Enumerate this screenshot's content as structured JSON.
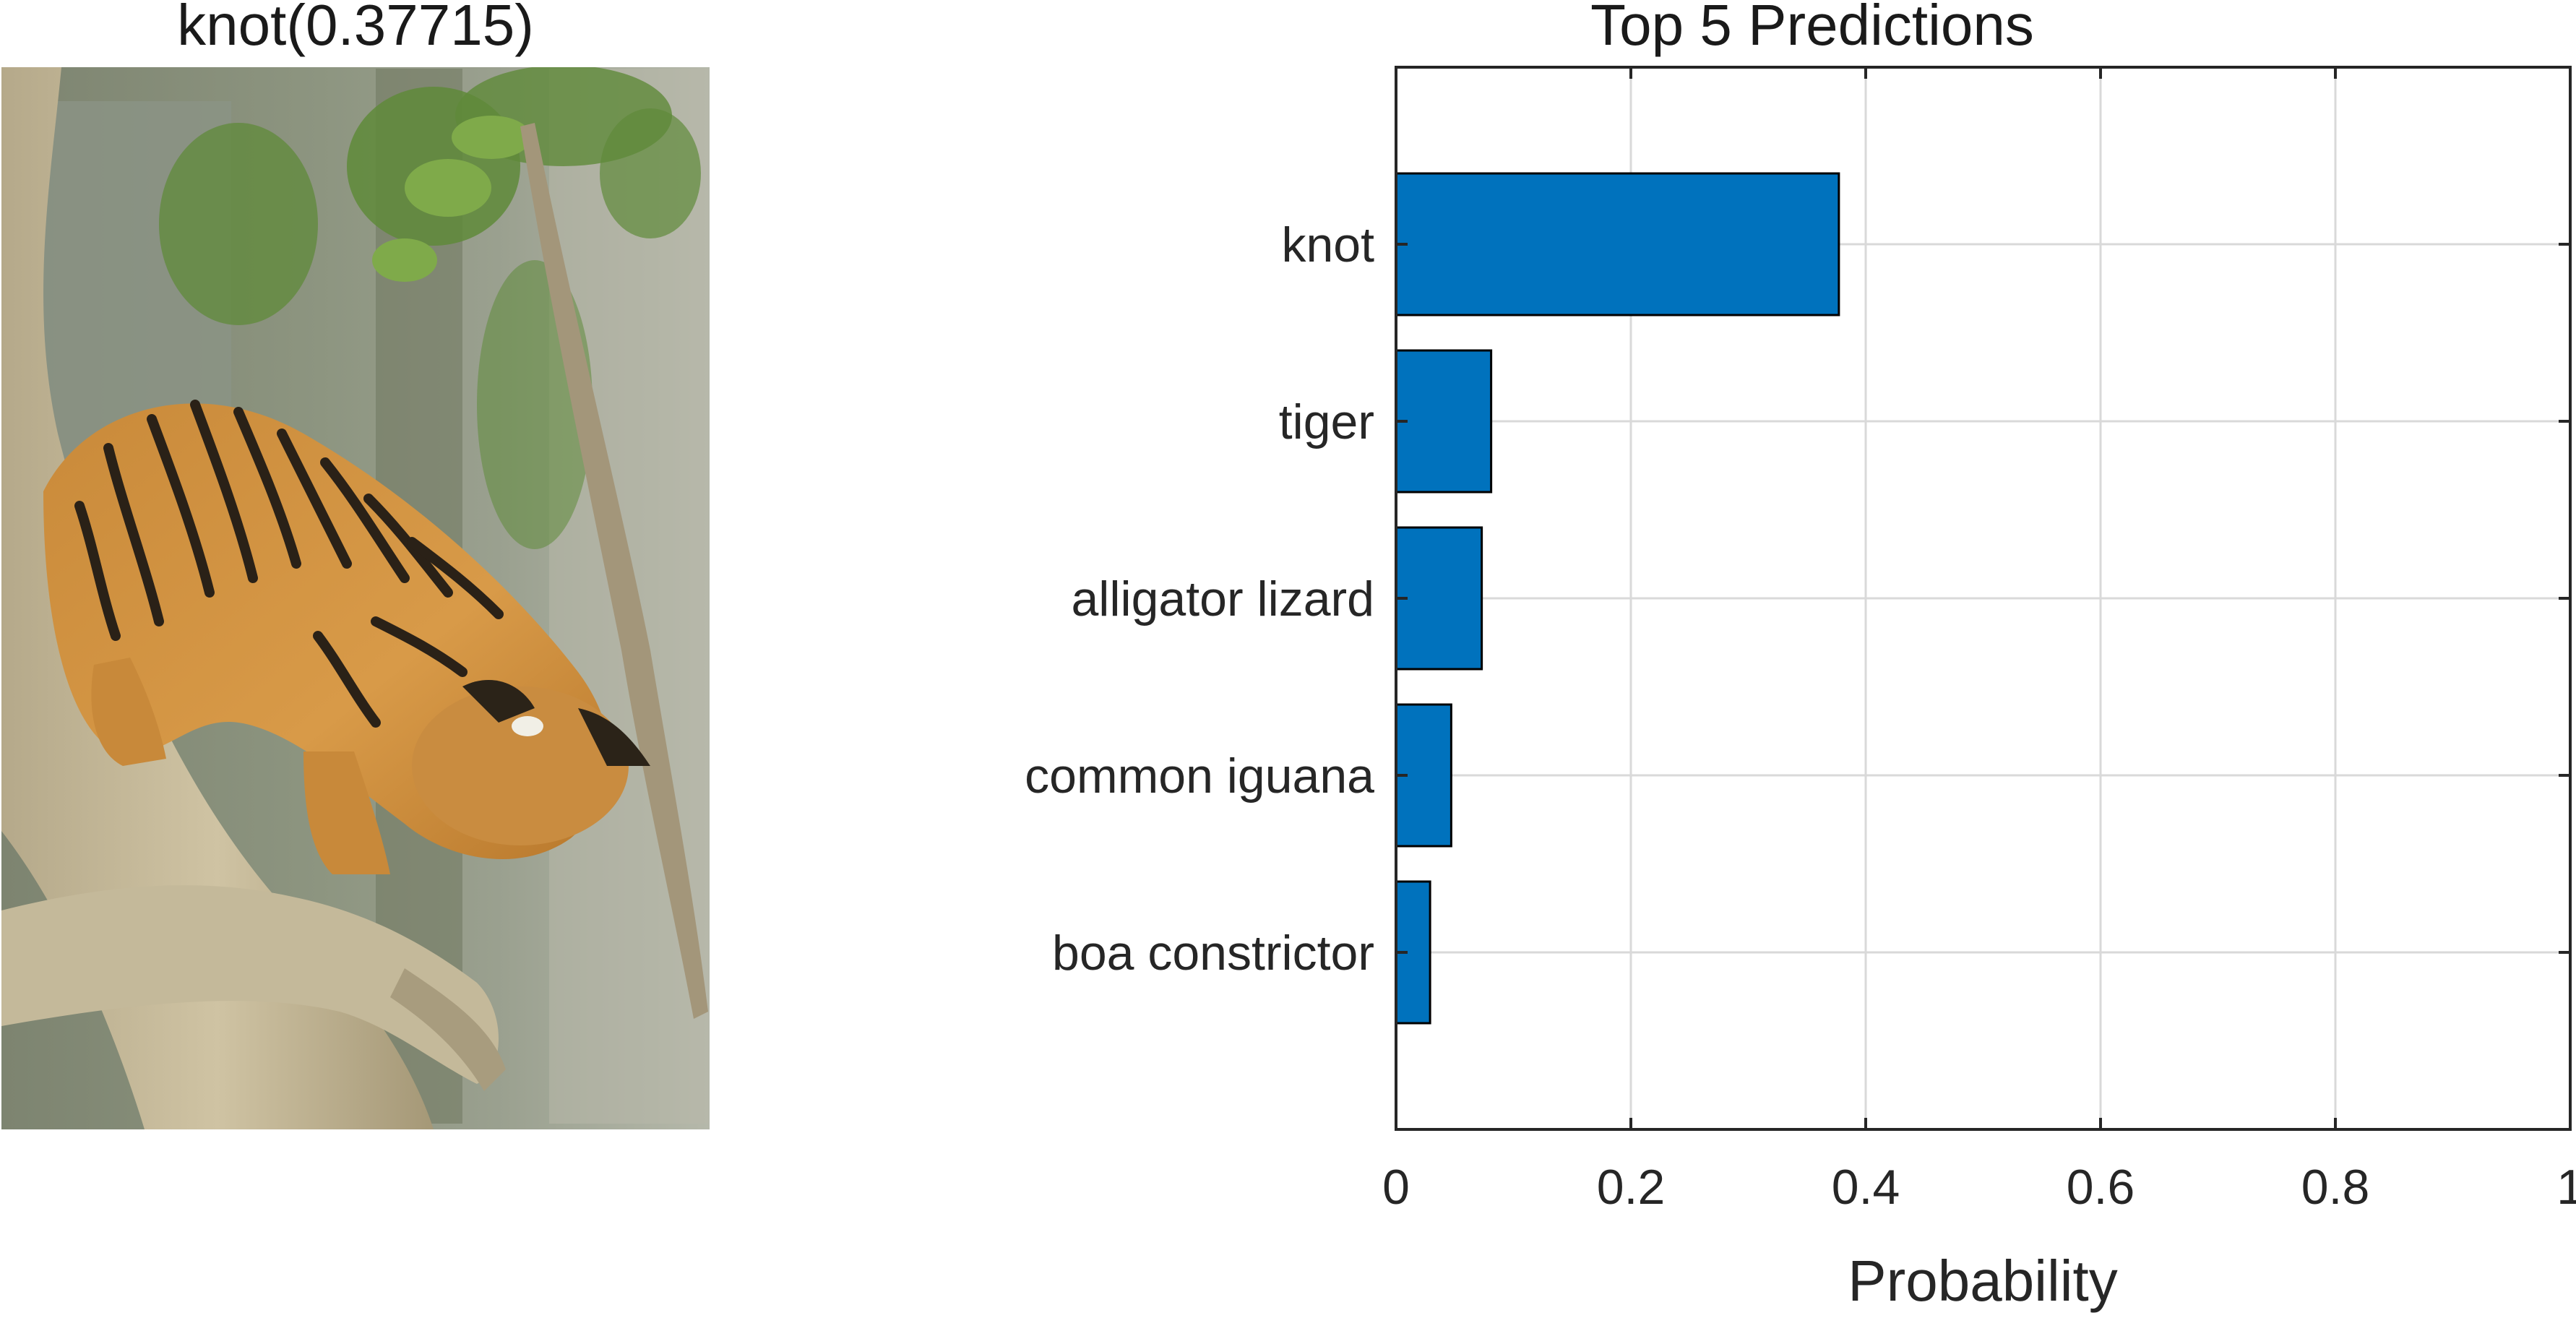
{
  "image_panel": {
    "title": "knot(0.37715)",
    "subject_icon": "tiger-on-branch-photo"
  },
  "chart_data": {
    "type": "bar",
    "orientation": "horizontal",
    "title": "Top 5 Predictions",
    "xlabel": "Probability",
    "ylabel": "",
    "categories": [
      "knot",
      "tiger",
      "alligator lizard",
      "common iguana",
      "boa constrictor"
    ],
    "values": [
      0.37715,
      0.081,
      0.073,
      0.047,
      0.029
    ],
    "xlim": [
      0,
      1
    ],
    "xticks": [
      "0",
      "0.2",
      "0.4",
      "0.6",
      "0.8",
      "1"
    ],
    "grid": true,
    "bar_color": "#0072BD",
    "edge_color": "#000000"
  }
}
